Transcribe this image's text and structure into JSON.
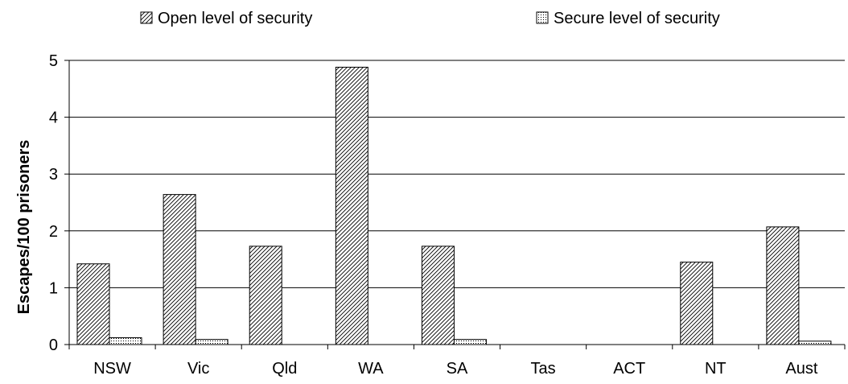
{
  "chart_data": {
    "type": "bar",
    "title": "",
    "xlabel": "",
    "ylabel": "Escapes/100 prisoners",
    "ylim": [
      0,
      5
    ],
    "yticks": [
      "0",
      "1",
      "2",
      "3",
      "4",
      "5"
    ],
    "grid": true,
    "legend_position": "top",
    "categories": [
      "NSW",
      "Vic",
      "Qld",
      "WA",
      "SA",
      "Tas",
      "ACT",
      "NT",
      "Aust"
    ],
    "series": [
      {
        "name": "Open level of security",
        "pattern": "diagonal-hatch",
        "values": [
          1.42,
          2.64,
          1.73,
          4.88,
          1.73,
          0,
          0,
          1.45,
          2.07
        ]
      },
      {
        "name": "Secure level of security",
        "pattern": "dotted",
        "values": [
          0.12,
          0.09,
          0,
          0,
          0.09,
          0,
          0,
          0,
          0.06
        ]
      }
    ]
  }
}
